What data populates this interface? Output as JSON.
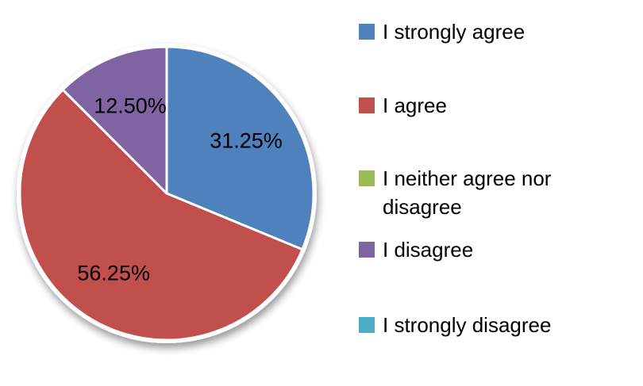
{
  "chart_data": {
    "type": "pie",
    "title": "",
    "categories": [
      "I strongly agree",
      "I agree",
      "I neither agree nor disagree",
      "I disagree",
      "I strongly disagree"
    ],
    "values": [
      31.25,
      56.25,
      0,
      12.5,
      0
    ],
    "value_labels": [
      "31.25%",
      "56.25%",
      "",
      "12.50%",
      ""
    ],
    "colors": [
      "#4f81bd",
      "#c0504d",
      "#9bbb59",
      "#8064a2",
      "#4bacc6"
    ],
    "slice_border_color": "#ffffff",
    "label_color": "#000000",
    "background": "#ffffff",
    "legend_position": "right",
    "start_angle": "top",
    "direction": "clockwise"
  }
}
